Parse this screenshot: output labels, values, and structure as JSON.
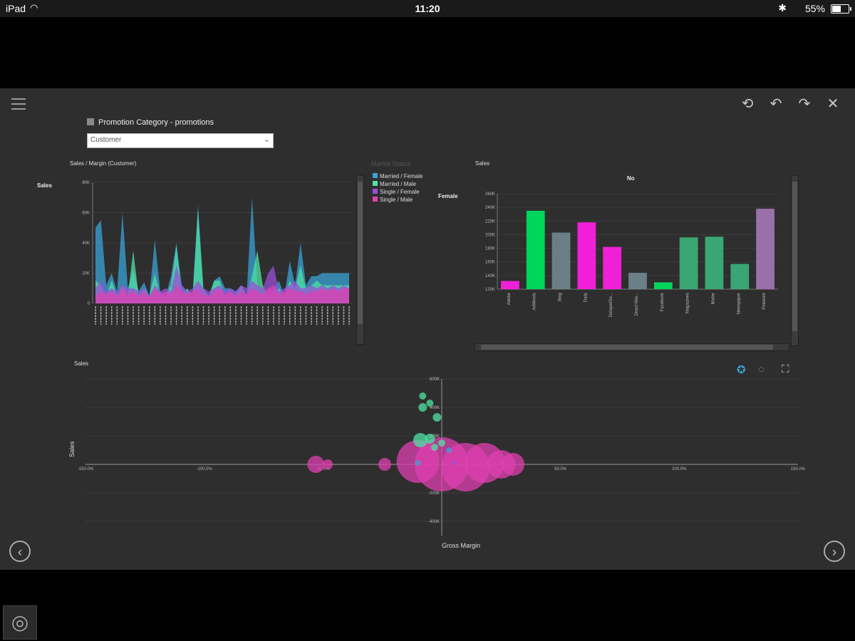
{
  "status_bar": {
    "device": "iPad",
    "time": "11:20",
    "battery": "55%",
    "battery_level": 0.55
  },
  "toolbar": {
    "reset_icon": "reset-icon",
    "undo_icon": "undo-icon",
    "redo_icon": "redo-icon",
    "close_icon": "close-icon"
  },
  "filter": {
    "title": "Promotion Category - promotions",
    "selected": "Customer"
  },
  "colors": {
    "married_female": "#3aa3d8",
    "married_male": "#4fe3a3",
    "single_female": "#9a4fd8",
    "single_male": "#e040b0",
    "bar_green": "#00d65a",
    "bar_slate": "#6b7f86",
    "bar_magenta": "#f020d8",
    "bar_teal": "#3aa673",
    "bar_purple": "#9a70a8"
  },
  "chart_data": [
    {
      "type": "area",
      "title": "Sales / Margin (Customer)",
      "ylabel": "Sales",
      "y_ticks": [
        "80K",
        "60K",
        "40K",
        "20K",
        "0"
      ],
      "ylim": [
        0,
        80000
      ],
      "legend_title": "Marital Status",
      "legend_placement": "right",
      "series": [
        {
          "name": "Married / Female",
          "values": [
            50000,
            55000,
            12000,
            20000,
            8000,
            60000,
            10000,
            22000,
            8000,
            14000,
            5000,
            42000,
            8000,
            5000,
            18000,
            40000,
            12000,
            8000,
            5000,
            65000,
            8000,
            5000,
            15000,
            18000,
            10000,
            10000,
            8000,
            12000,
            5000,
            70000,
            12000,
            8000,
            8000,
            10000,
            15000,
            5000,
            28000,
            12000,
            40000,
            12000,
            18000,
            18000,
            20000,
            20000,
            20000,
            20000,
            20000,
            20000
          ]
        },
        {
          "name": "Married / Male",
          "values": [
            15000,
            12000,
            5000,
            15000,
            5000,
            12000,
            5000,
            35000,
            5000,
            10000,
            5000,
            20000,
            5000,
            5000,
            12000,
            38000,
            5000,
            10000,
            5000,
            62000,
            10000,
            5000,
            15000,
            15000,
            5000,
            8000,
            5000,
            12000,
            5000,
            18000,
            35000,
            12000,
            5000,
            8000,
            10000,
            5000,
            15000,
            10000,
            25000,
            10000,
            12000,
            15000,
            12000,
            12000,
            12000,
            12000,
            12000,
            12000
          ]
        },
        {
          "name": "Single / Female",
          "values": [
            10000,
            15000,
            8000,
            10000,
            8000,
            12000,
            10000,
            10000,
            8000,
            10000,
            5000,
            12000,
            8000,
            10000,
            8000,
            25000,
            12000,
            8000,
            10000,
            15000,
            10000,
            8000,
            10000,
            12000,
            8000,
            10000,
            8000,
            12000,
            10000,
            15000,
            12000,
            10000,
            20000,
            25000,
            8000,
            10000,
            12000,
            15000,
            10000,
            10000,
            12000,
            10000,
            12000,
            10000,
            12000,
            10000,
            12000,
            10000
          ]
        },
        {
          "name": "Single / Male",
          "values": [
            5000,
            8000,
            6000,
            8000,
            5000,
            10000,
            6000,
            8000,
            5000,
            8000,
            4000,
            10000,
            6000,
            8000,
            6000,
            12000,
            8000,
            6000,
            8000,
            10000,
            6000,
            5000,
            8000,
            10000,
            6000,
            8000,
            5000,
            8000,
            6000,
            10000,
            8000,
            6000,
            10000,
            12000,
            6000,
            8000,
            10000,
            8000,
            8000,
            6000,
            8000,
            8000,
            10000,
            8000,
            10000,
            8000,
            10000,
            10000
          ]
        }
      ]
    },
    {
      "type": "bar",
      "title": "Sales",
      "facet_column": "No",
      "facet_row": "Female",
      "y_ticks": [
        "260K",
        "240K",
        "220K",
        "200K",
        "180K",
        "160K",
        "140K",
        "120K"
      ],
      "ylim": [
        120000,
        260000
      ],
      "categories": [
        "Adobe",
        "AdWords",
        "Bing",
        "Daily",
        "DelayedSe...",
        "Direct Mar...",
        "Facebook",
        "Magazines",
        "Mailer",
        "Newspaper",
        "Pinterest"
      ],
      "values": [
        132000,
        235000,
        203000,
        218000,
        182000,
        144000,
        130000,
        196000,
        197000,
        157000,
        238000
      ],
      "bar_colors": [
        "bar_magenta",
        "bar_green",
        "bar_slate",
        "bar_magenta",
        "bar_magenta",
        "bar_slate",
        "bar_green",
        "bar_teal",
        "bar_teal",
        "bar_teal",
        "bar_purple"
      ]
    },
    {
      "type": "scatter",
      "title": "Sales",
      "xlabel": "Gross Margin",
      "ylabel": "Sales",
      "x_ticks": [
        "-150.0%",
        "-100.0%",
        "-50.0%",
        "50.0%",
        "100.0%",
        "150.0%"
      ],
      "y_ticks": [
        "600K",
        "400K",
        "200K",
        "-200K",
        "-400K"
      ],
      "xlim": [
        -150,
        150
      ],
      "ylim": [
        -500000,
        600000
      ],
      "points": [
        {
          "x": -53,
          "y": 0,
          "r": 12,
          "series": "Single / Male"
        },
        {
          "x": -48,
          "y": 0,
          "r": 7,
          "series": "Single / Male"
        },
        {
          "x": -24,
          "y": 0,
          "r": 9,
          "series": "Single / Male"
        },
        {
          "x": -10,
          "y": 20000,
          "r": 30,
          "series": "Single / Male"
        },
        {
          "x": 0,
          "y": 0,
          "r": 38,
          "series": "Single / Male"
        },
        {
          "x": 10,
          "y": -20000,
          "r": 34,
          "series": "Single / Male"
        },
        {
          "x": 18,
          "y": 10000,
          "r": 28,
          "series": "Single / Male"
        },
        {
          "x": 25,
          "y": 0,
          "r": 20,
          "series": "Single / Male"
        },
        {
          "x": 30,
          "y": 0,
          "r": 16,
          "series": "Single / Male"
        },
        {
          "x": -8,
          "y": 480000,
          "r": 5,
          "series": "Married / Male"
        },
        {
          "x": -8,
          "y": 400000,
          "r": 6,
          "series": "Married / Male"
        },
        {
          "x": -5,
          "y": 430000,
          "r": 5,
          "series": "Married / Male"
        },
        {
          "x": -2,
          "y": 330000,
          "r": 6,
          "series": "Married / Male"
        },
        {
          "x": -9,
          "y": 170000,
          "r": 10,
          "series": "Married / Male"
        },
        {
          "x": -5,
          "y": 180000,
          "r": 7,
          "series": "Married / Male"
        },
        {
          "x": -3,
          "y": 120000,
          "r": 5,
          "series": "Married / Male"
        },
        {
          "x": 0,
          "y": 150000,
          "r": 5,
          "series": "Married / Male"
        },
        {
          "x": 3,
          "y": 100000,
          "r": 4,
          "series": "Married / Female"
        },
        {
          "x": -10,
          "y": 10000,
          "r": 4,
          "series": "Married / Female"
        },
        {
          "x": 5,
          "y": 10000,
          "r": 3,
          "series": "Single / Female"
        }
      ]
    }
  ]
}
